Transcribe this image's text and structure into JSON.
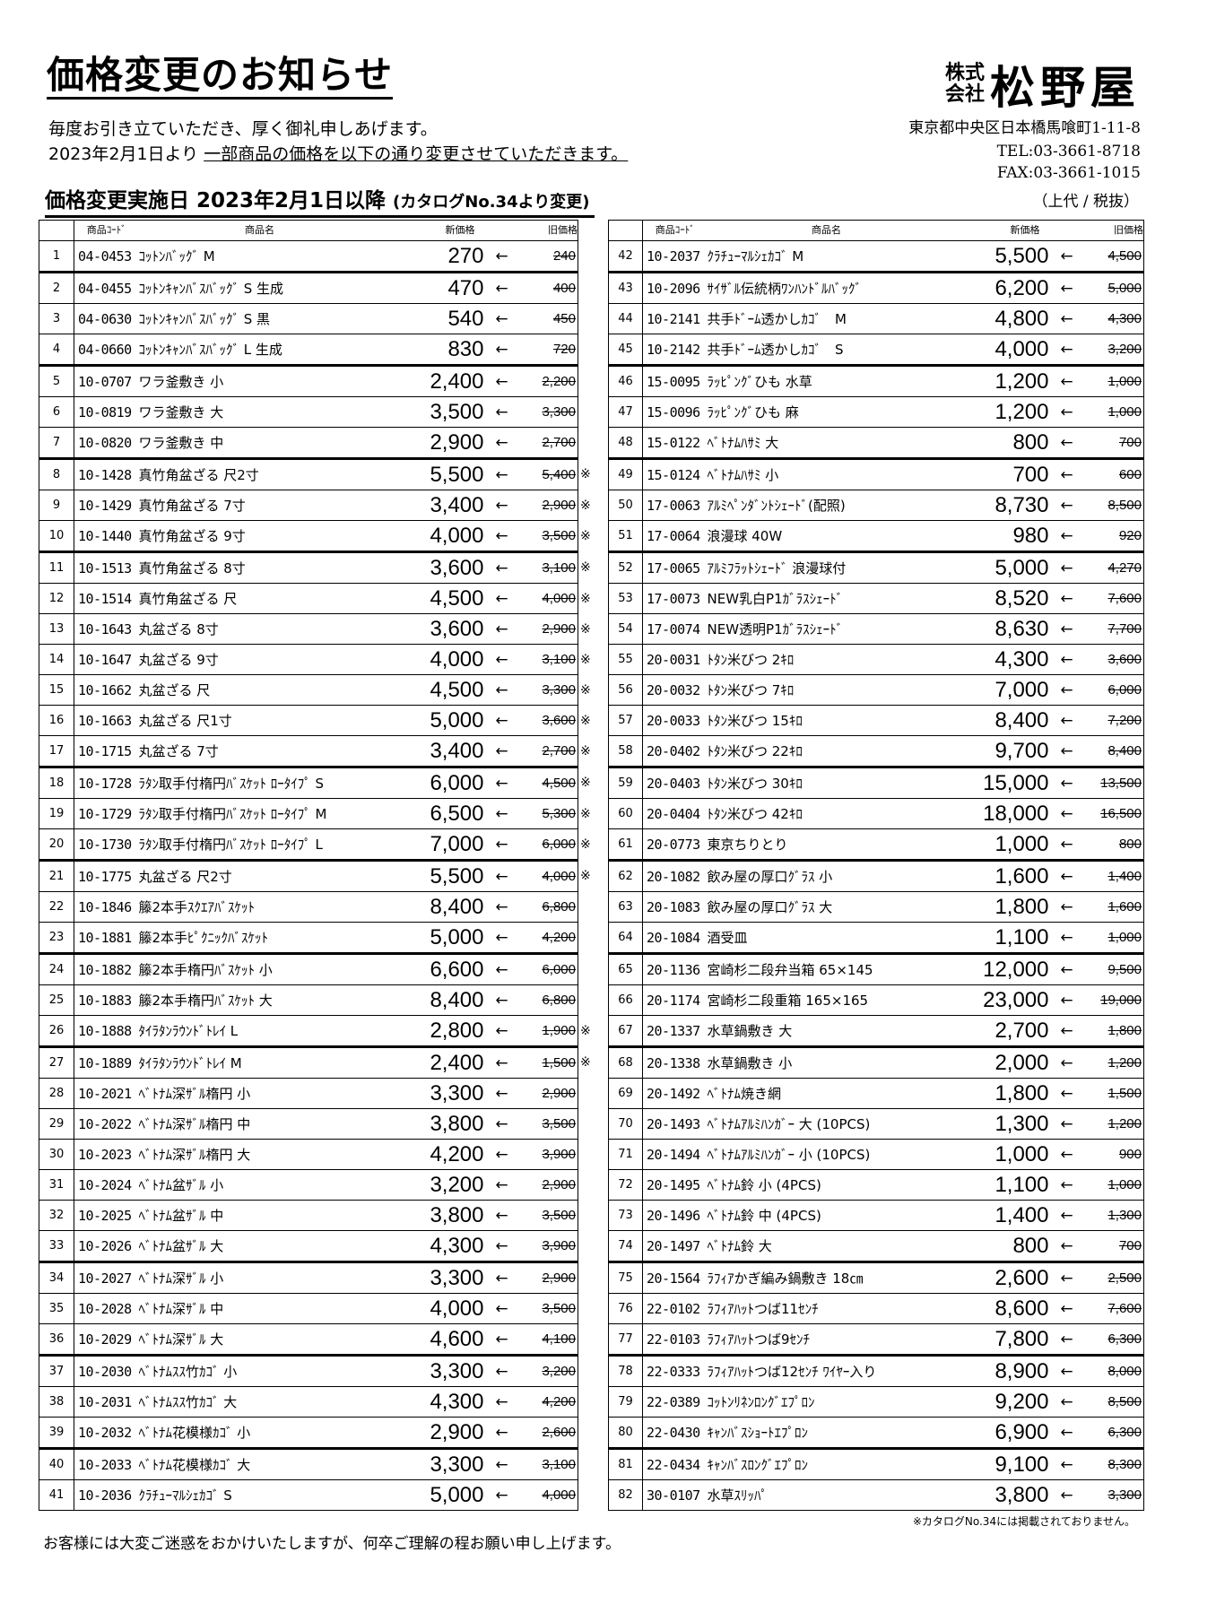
{
  "header": {
    "title": "価格変更のお知らせ",
    "intro_line1": "毎度お引き立ていただき、厚く御礼申しあげます。",
    "intro_line2_prefix": "2023年2月1日より ",
    "intro_line2_underlined": "一部商品の価格を以下の通り変更させていただきます。",
    "heading_main": "価格変更実施日 2023年2月1日以降 ",
    "heading_sub": "(カタログNo.34より変更)",
    "tax_note": "（上代 / 税抜）"
  },
  "company": {
    "kabushiki": "株式",
    "kaisha": "会社",
    "name": "松野屋",
    "address": "東京都中央区日本橋馬喰町1-11-8",
    "tel": "TEL:03-3661-8718",
    "fax": "FAX:03-3661-1015"
  },
  "table_headers": {
    "code": "商品ｺｰﾄﾞ",
    "name": "商品名",
    "new_price": "新価格",
    "old_price": "旧価格"
  },
  "arrow": "←",
  "mark_symbol": "※",
  "left_items": [
    [
      "1",
      "04-0453",
      "ｺｯﾄﾝﾊﾞｯｸﾞ M",
      "270",
      "240",
      false
    ],
    [
      "2",
      "04-0455",
      "ｺｯﾄﾝｷｬﾝﾊﾞｽﾊﾞｯｸﾞ S 生成",
      "470",
      "400",
      false
    ],
    [
      "3",
      "04-0630",
      "ｺｯﾄﾝｷｬﾝﾊﾞｽﾊﾞｯｸﾞ S 黒",
      "540",
      "450",
      false
    ],
    [
      "4",
      "04-0660",
      "ｺｯﾄﾝｷｬﾝﾊﾞｽﾊﾞｯｸﾞ L 生成",
      "830",
      "720",
      false
    ],
    [
      "5",
      "10-0707",
      "ワラ釜敷き 小",
      "2,400",
      "2,200",
      false
    ],
    [
      "6",
      "10-0819",
      "ワラ釜敷き 大",
      "3,500",
      "3,300",
      false
    ],
    [
      "7",
      "10-0820",
      "ワラ釜敷き 中",
      "2,900",
      "2,700",
      false
    ],
    [
      "8",
      "10-1428",
      "真竹角盆ざる 尺2寸",
      "5,500",
      "5,400",
      true
    ],
    [
      "9",
      "10-1429",
      "真竹角盆ざる 7寸",
      "3,400",
      "2,900",
      true
    ],
    [
      "10",
      "10-1440",
      "真竹角盆ざる 9寸",
      "4,000",
      "3,500",
      true
    ],
    [
      "11",
      "10-1513",
      "真竹角盆ざる 8寸",
      "3,600",
      "3,100",
      true
    ],
    [
      "12",
      "10-1514",
      "真竹角盆ざる 尺",
      "4,500",
      "4,000",
      true
    ],
    [
      "13",
      "10-1643",
      "丸盆ざる 8寸",
      "3,600",
      "2,900",
      true
    ],
    [
      "14",
      "10-1647",
      "丸盆ざる 9寸",
      "4,000",
      "3,100",
      true
    ],
    [
      "15",
      "10-1662",
      "丸盆ざる 尺",
      "4,500",
      "3,300",
      true
    ],
    [
      "16",
      "10-1663",
      "丸盆ざる 尺1寸",
      "5,000",
      "3,600",
      true
    ],
    [
      "17",
      "10-1715",
      "丸盆ざる 7寸",
      "3,400",
      "2,700",
      true
    ],
    [
      "18",
      "10-1728",
      "ﾗﾀﾝ取手付楕円ﾊﾞｽｹｯﾄ ﾛｰﾀｲﾌﾟ S",
      "6,000",
      "4,500",
      true
    ],
    [
      "19",
      "10-1729",
      "ﾗﾀﾝ取手付楕円ﾊﾞｽｹｯﾄ ﾛｰﾀｲﾌﾟ M",
      "6,500",
      "5,300",
      true
    ],
    [
      "20",
      "10-1730",
      "ﾗﾀﾝ取手付楕円ﾊﾞｽｹｯﾄ ﾛｰﾀｲﾌﾟ L",
      "7,000",
      "6,000",
      true
    ],
    [
      "21",
      "10-1775",
      "丸盆ざる 尺2寸",
      "5,500",
      "4,000",
      true
    ],
    [
      "22",
      "10-1846",
      "籐2本手ｽｸｴｱﾊﾞｽｹｯﾄ",
      "8,400",
      "6,800",
      false
    ],
    [
      "23",
      "10-1881",
      "籐2本手ﾋﾟｸﾆｯｸﾊﾞｽｹｯﾄ",
      "5,000",
      "4,200",
      false
    ],
    [
      "24",
      "10-1882",
      "籐2本手楕円ﾊﾞｽｹｯﾄ 小",
      "6,600",
      "6,000",
      false
    ],
    [
      "25",
      "10-1883",
      "籐2本手楕円ﾊﾞｽｹｯﾄ 大",
      "8,400",
      "6,800",
      false
    ],
    [
      "26",
      "10-1888",
      "ﾀｲﾗﾀﾝﾗｳﾝﾄﾞﾄﾚｲ L",
      "2,800",
      "1,900",
      true
    ],
    [
      "27",
      "10-1889",
      "ﾀｲﾗﾀﾝﾗｳﾝﾄﾞﾄﾚｲ M",
      "2,400",
      "1,500",
      true
    ],
    [
      "28",
      "10-2021",
      "ﾍﾞﾄﾅﾑ深ｻﾞﾙ楕円 小",
      "3,300",
      "2,900",
      false
    ],
    [
      "29",
      "10-2022",
      "ﾍﾞﾄﾅﾑ深ｻﾞﾙ楕円 中",
      "3,800",
      "3,500",
      false
    ],
    [
      "30",
      "10-2023",
      "ﾍﾞﾄﾅﾑ深ｻﾞﾙ楕円 大",
      "4,200",
      "3,900",
      false
    ],
    [
      "31",
      "10-2024",
      "ﾍﾞﾄﾅﾑ盆ｻﾞﾙ 小",
      "3,200",
      "2,900",
      false
    ],
    [
      "32",
      "10-2025",
      "ﾍﾞﾄﾅﾑ盆ｻﾞﾙ 中",
      "3,800",
      "3,500",
      false
    ],
    [
      "33",
      "10-2026",
      "ﾍﾞﾄﾅﾑ盆ｻﾞﾙ 大",
      "4,300",
      "3,900",
      false
    ],
    [
      "34",
      "10-2027",
      "ﾍﾞﾄﾅﾑ深ｻﾞﾙ 小",
      "3,300",
      "2,900",
      false
    ],
    [
      "35",
      "10-2028",
      "ﾍﾞﾄﾅﾑ深ｻﾞﾙ 中",
      "4,000",
      "3,500",
      false
    ],
    [
      "36",
      "10-2029",
      "ﾍﾞﾄﾅﾑ深ｻﾞﾙ 大",
      "4,600",
      "4,100",
      false
    ],
    [
      "37",
      "10-2030",
      "ﾍﾞﾄﾅﾑｽｽ竹ｶｺﾞ 小",
      "3,300",
      "3,200",
      false
    ],
    [
      "38",
      "10-2031",
      "ﾍﾞﾄﾅﾑｽｽ竹ｶｺﾞ 大",
      "4,300",
      "4,200",
      false
    ],
    [
      "39",
      "10-2032",
      "ﾍﾞﾄﾅﾑ花模様ｶｺﾞ 小",
      "2,900",
      "2,600",
      false
    ],
    [
      "40",
      "10-2033",
      "ﾍﾞﾄﾅﾑ花模様ｶｺﾞ 大",
      "3,300",
      "3,100",
      false
    ],
    [
      "41",
      "10-2036",
      "ｸﾗﾁｭｰﾏﾙｼｪｶｺﾞ S",
      "5,000",
      "4,000",
      false
    ]
  ],
  "right_items": [
    [
      "42",
      "10-2037",
      "ｸﾗﾁｭｰﾏﾙｼｪｶｺﾞ M",
      "5,500",
      "4,500",
      false
    ],
    [
      "43",
      "10-2096",
      "ｻｲｻﾞﾙ伝統柄ﾜﾝﾊﾝﾄﾞﾙﾊﾞｯｸﾞ",
      "6,200",
      "5,000",
      false
    ],
    [
      "44",
      "10-2141",
      "共手ﾄﾞｰﾑ透かしｶｺﾞ　M",
      "4,800",
      "4,300",
      false
    ],
    [
      "45",
      "10-2142",
      "共手ﾄﾞｰﾑ透かしｶｺﾞ　S",
      "4,000",
      "3,200",
      false
    ],
    [
      "46",
      "15-0095",
      "ﾗｯﾋﾟﾝｸﾞひも 水草",
      "1,200",
      "1,000",
      false
    ],
    [
      "47",
      "15-0096",
      "ﾗｯﾋﾟﾝｸﾞひも 麻",
      "1,200",
      "1,000",
      false
    ],
    [
      "48",
      "15-0122",
      "ﾍﾞﾄﾅﾑﾊｻﾐ 大",
      "800",
      "700",
      false
    ],
    [
      "49",
      "15-0124",
      "ﾍﾞﾄﾅﾑﾊｻﾐ 小",
      "700",
      "600",
      false
    ],
    [
      "50",
      "17-0063",
      "ｱﾙﾐﾍﾟﾝﾀﾞﾝﾄｼｪｰﾄﾞ(配照)",
      "8,730",
      "8,500",
      false
    ],
    [
      "51",
      "17-0064",
      "浪漫球 40W",
      "980",
      "920",
      false
    ],
    [
      "52",
      "17-0065",
      "ｱﾙﾐﾌﾗｯﾄｼｪｰﾄﾞ 浪漫球付",
      "5,000",
      "4,270",
      false
    ],
    [
      "53",
      "17-0073",
      "NEW乳白P1ｶﾞﾗｽｼｪｰﾄﾞ",
      "8,520",
      "7,600",
      false
    ],
    [
      "54",
      "17-0074",
      "NEW透明P1ｶﾞﾗｽｼｪｰﾄﾞ",
      "8,630",
      "7,700",
      false
    ],
    [
      "55",
      "20-0031",
      "ﾄﾀﾝ米びつ 2ｷﾛ",
      "4,300",
      "3,600",
      false
    ],
    [
      "56",
      "20-0032",
      "ﾄﾀﾝ米びつ 7ｷﾛ",
      "7,000",
      "6,000",
      false
    ],
    [
      "57",
      "20-0033",
      "ﾄﾀﾝ米びつ 15ｷﾛ",
      "8,400",
      "7,200",
      false
    ],
    [
      "58",
      "20-0402",
      "ﾄﾀﾝ米びつ 22ｷﾛ",
      "9,700",
      "8,400",
      false
    ],
    [
      "59",
      "20-0403",
      "ﾄﾀﾝ米びつ 30ｷﾛ",
      "15,000",
      "13,500",
      false
    ],
    [
      "60",
      "20-0404",
      "ﾄﾀﾝ米びつ 42ｷﾛ",
      "18,000",
      "16,500",
      false
    ],
    [
      "61",
      "20-0773",
      "東京ちりとり",
      "1,000",
      "800",
      false
    ],
    [
      "62",
      "20-1082",
      "飲み屋の厚口ｸﾞﾗｽ 小",
      "1,600",
      "1,400",
      false
    ],
    [
      "63",
      "20-1083",
      "飲み屋の厚口ｸﾞﾗｽ 大",
      "1,800",
      "1,600",
      false
    ],
    [
      "64",
      "20-1084",
      "酒受皿",
      "1,100",
      "1,000",
      false
    ],
    [
      "65",
      "20-1136",
      "宮崎杉二段弁当箱 65×145",
      "12,000",
      "9,500",
      false
    ],
    [
      "66",
      "20-1174",
      "宮崎杉二段重箱 165×165",
      "23,000",
      "19,000",
      false
    ],
    [
      "67",
      "20-1337",
      "水草鍋敷き 大",
      "2,700",
      "1,800",
      false
    ],
    [
      "68",
      "20-1338",
      "水草鍋敷き 小",
      "2,000",
      "1,200",
      false
    ],
    [
      "69",
      "20-1492",
      "ﾍﾞﾄﾅﾑ焼き網",
      "1,800",
      "1,500",
      false
    ],
    [
      "70",
      "20-1493",
      "ﾍﾞﾄﾅﾑｱﾙﾐﾊﾝｶﾞｰ 大 (10PCS)",
      "1,300",
      "1,200",
      false
    ],
    [
      "71",
      "20-1494",
      "ﾍﾞﾄﾅﾑｱﾙﾐﾊﾝｶﾞｰ 小 (10PCS)",
      "1,000",
      "900",
      false
    ],
    [
      "72",
      "20-1495",
      "ﾍﾞﾄﾅﾑ鈴 小 (4PCS)",
      "1,100",
      "1,000",
      false
    ],
    [
      "73",
      "20-1496",
      "ﾍﾞﾄﾅﾑ鈴 中 (4PCS)",
      "1,400",
      "1,300",
      false
    ],
    [
      "74",
      "20-1497",
      "ﾍﾞﾄﾅﾑ鈴 大",
      "800",
      "700",
      false
    ],
    [
      "75",
      "20-1564",
      "ﾗﾌｨｱかぎ編み鍋敷き 18㎝",
      "2,600",
      "2,500",
      false
    ],
    [
      "76",
      "22-0102",
      "ﾗﾌｨｱﾊｯﾄつば11ｾﾝﾁ",
      "8,600",
      "7,600",
      false
    ],
    [
      "77",
      "22-0103",
      "ﾗﾌｨｱﾊｯﾄつば9ｾﾝﾁ",
      "7,800",
      "6,300",
      false
    ],
    [
      "78",
      "22-0333",
      "ﾗﾌｨｱﾊｯﾄつば12ｾﾝﾁ ﾜｲﾔｰ入り",
      "8,900",
      "8,000",
      false
    ],
    [
      "79",
      "22-0389",
      "ｺｯﾄﾝﾘﾈﾝﾛﾝｸﾞｴﾌﾟﾛﾝ",
      "9,200",
      "8,500",
      false
    ],
    [
      "80",
      "22-0430",
      "ｷｬﾝﾊﾞｽｼｮｰﾄｴﾌﾟﾛﾝ",
      "6,900",
      "6,300",
      false
    ],
    [
      "81",
      "22-0434",
      "ｷｬﾝﾊﾞｽﾛﾝｸﾞｴﾌﾟﾛﾝ",
      "9,100",
      "8,300",
      false
    ],
    [
      "82",
      "30-0107",
      "水草ｽﾘｯﾊﾟ",
      "3,800",
      "3,300",
      false
    ]
  ],
  "footnote": "※カタログNo.34には掲載されておりません。",
  "footer": "お客様には大変ご迷惑をおかけいたしますが、何卒ご理解の程お願い申し上げます。"
}
